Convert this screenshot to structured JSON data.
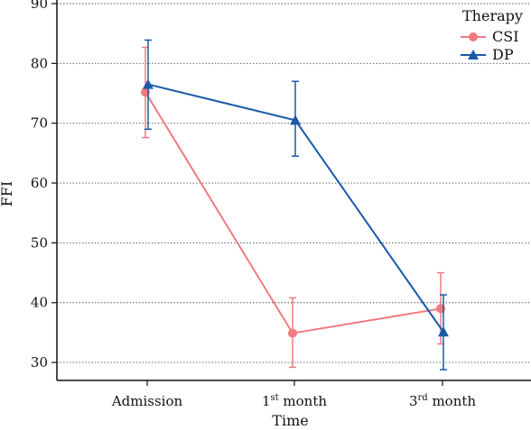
{
  "chart_data": {
    "type": "line",
    "categories": [
      {
        "main": "Admission",
        "sup": "",
        "rest": ""
      },
      {
        "main": "1",
        "sup": "st",
        "rest": " month"
      },
      {
        "main": "3",
        "sup": "rd",
        "rest": " month"
      }
    ],
    "xlabel": "Time",
    "ylabel": "FFI",
    "ylim": [
      27,
      90
    ],
    "yticks": [
      30,
      40,
      50,
      60,
      70,
      80,
      90
    ],
    "grid": {
      "y": true,
      "style": "dotted"
    },
    "legend": {
      "title": "Therapy",
      "position": "top-right"
    },
    "series": [
      {
        "name": "CSI",
        "color": "#f07a80",
        "marker": "circle",
        "values": [
          75.2,
          34.9,
          39.0
        ],
        "error_low": [
          67.6,
          29.2,
          33.1
        ],
        "error_high": [
          82.7,
          40.8,
          45.0
        ]
      },
      {
        "name": "DP",
        "color": "#1a5aa8",
        "marker": "triangle",
        "values": [
          76.5,
          70.5,
          35.1
        ],
        "error_low": [
          69.0,
          64.5,
          28.8
        ],
        "error_high": [
          83.9,
          77.0,
          41.3
        ]
      }
    ]
  }
}
